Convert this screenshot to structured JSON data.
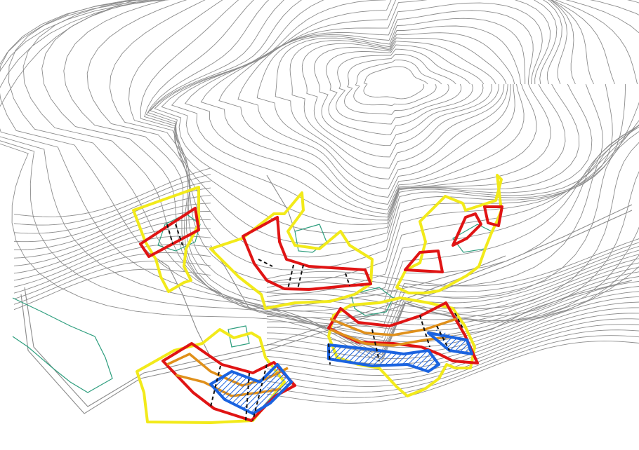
{
  "map": {
    "colors": {
      "background": "#ffffff",
      "contour": "#8c8c8c",
      "building": "#2e9e7e",
      "boundary": "#f2ea1a",
      "parcel": "#e01414",
      "terrace": "#e0901a",
      "blue_zone": "#1a63e0",
      "divider": "#111111"
    },
    "layers": [
      "contours",
      "roads",
      "buildings",
      "site-boundaries",
      "parcels",
      "terraces",
      "blue-hatched-zones",
      "dashed-dividers"
    ]
  }
}
